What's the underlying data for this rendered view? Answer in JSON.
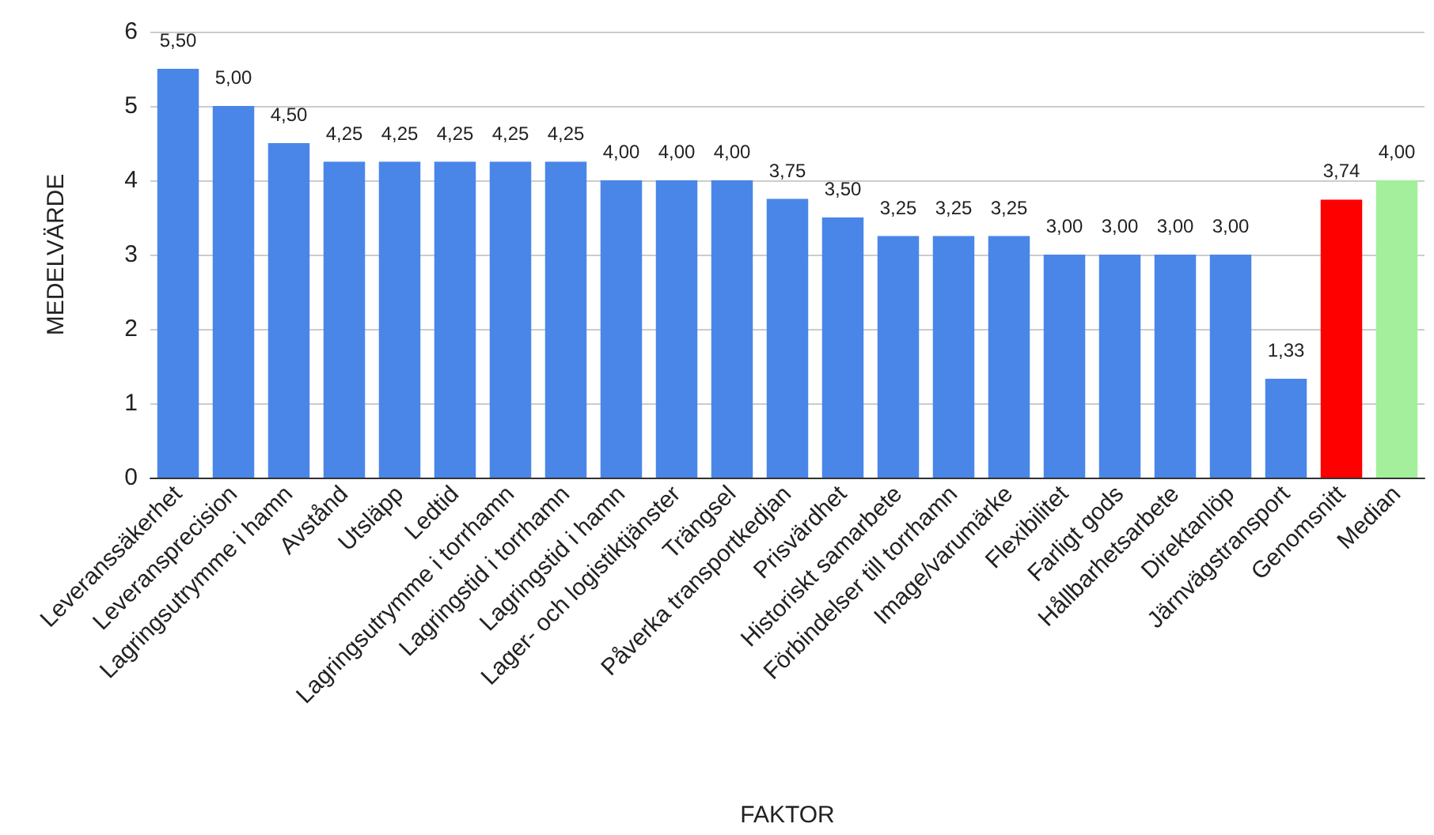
{
  "chart_data": {
    "type": "bar",
    "xlabel": "FAKTOR",
    "ylabel": "MEDELVÄRDE",
    "categories": [
      "Leveranssäkerhet",
      "Leveransprecision",
      "Lagringsutrymme i hamn",
      "Avstånd",
      "Utsläpp",
      "Ledtid",
      "Lagringsutrymme i torrhamn",
      "Lagringstid i torrhamn",
      "Lagringstid i hamn",
      "Lager- och logistiktjänster",
      "Trängsel",
      "Påverka transportkedjan",
      "Prisvärdhet",
      "Historiskt samarbete",
      "Förbindelser till torrhamn",
      "Image/varumärke",
      "Flexibilitet",
      "Farligt gods",
      "Hållbarhetsarbete",
      "Direktanlöp",
      "Järnvägstransport",
      "Genomsnitt",
      "Median"
    ],
    "values": [
      5.5,
      5,
      4.5,
      4.25,
      4.25,
      4.25,
      4.25,
      4.25,
      4,
      4,
      4,
      3.75,
      3.5,
      3.25,
      3.25,
      3.25,
      3,
      3,
      3,
      3,
      1.33,
      3.74,
      4
    ],
    "value_labels": [
      "5,50",
      "5,00",
      "4,50",
      "4,25",
      "4,25",
      "4,25",
      "4,25",
      "4,25",
      "4,00",
      "4,00",
      "4,00",
      "3,75",
      "3,50",
      "3,25",
      "3,25",
      "3,25",
      "3,00",
      "3,00",
      "3,00",
      "3,00",
      "1,33",
      "3,74",
      "4,00"
    ],
    "colors": [
      "#4a86e8",
      "#4a86e8",
      "#4a86e8",
      "#4a86e8",
      "#4a86e8",
      "#4a86e8",
      "#4a86e8",
      "#4a86e8",
      "#4a86e8",
      "#4a86e8",
      "#4a86e8",
      "#4a86e8",
      "#4a86e8",
      "#4a86e8",
      "#4a86e8",
      "#4a86e8",
      "#4a86e8",
      "#4a86e8",
      "#4a86e8",
      "#4a86e8",
      "#4a86e8",
      "#ff0000",
      "#a4ef9c"
    ],
    "ylim": [
      0,
      6
    ],
    "yticks": [
      0,
      1,
      2,
      3,
      4,
      5,
      6
    ],
    "grid": "y"
  }
}
